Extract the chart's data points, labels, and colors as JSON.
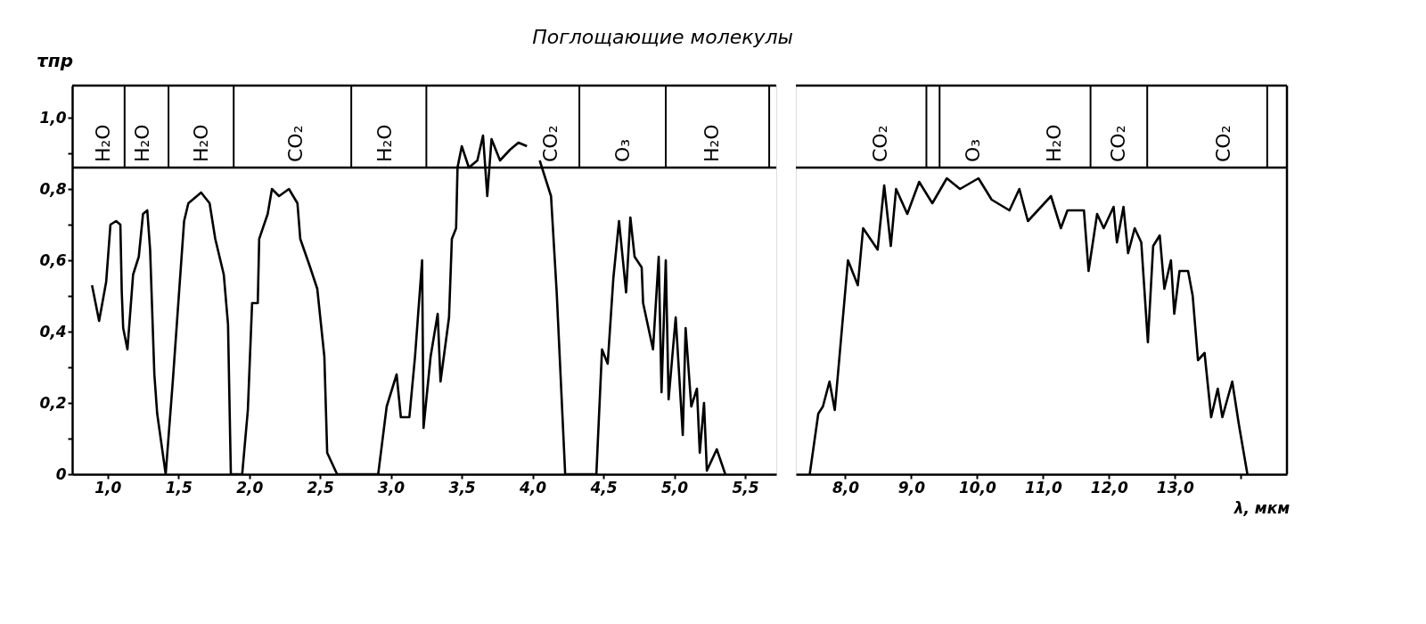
{
  "chart_data": [
    {
      "type": "line",
      "title": "Поглощающие молекулы",
      "ylabel": "τпр",
      "xlim": [
        0.75,
        5.72
      ],
      "ylim": [
        0,
        1.09
      ],
      "xticks": [
        {
          "value": 1.0,
          "label": "1,0"
        },
        {
          "value": 1.5,
          "label": "1,5"
        },
        {
          "value": 2.0,
          "label": "2,0"
        },
        {
          "value": 2.5,
          "label": "2,5"
        },
        {
          "value": 3.0,
          "label": "3,0"
        },
        {
          "value": 3.5,
          "label": "3,5"
        },
        {
          "value": 4.0,
          "label": "4,0"
        },
        {
          "value": 4.5,
          "label": "4,5"
        },
        {
          "value": 5.0,
          "label": "5,0"
        },
        {
          "value": 5.5,
          "label": "5,5"
        }
      ],
      "yticks": [
        0,
        {
          "value": 0.1,
          "label": null
        },
        {
          "value": 0.2,
          "label": "0,2"
        },
        {
          "value": 0.3,
          "label": null
        },
        {
          "value": 0.4,
          "label": "0,4"
        },
        {
          "value": 0.5,
          "label": null
        },
        {
          "value": 0.6,
          "label": "0,6"
        },
        {
          "value": 0.7,
          "label": null
        },
        {
          "value": 0.8,
          "label": "0,8"
        },
        {
          "value": 0.9,
          "label": null
        },
        {
          "value": 1.0,
          "label": "1,0"
        }
      ],
      "x": [
        0.89,
        0.94,
        0.99,
        1.02,
        1.06,
        1.09,
        1.1,
        1.11,
        1.14,
        1.18,
        1.22,
        1.25,
        1.28,
        1.3,
        1.33,
        1.35,
        1.41,
        1.46,
        1.54,
        1.57,
        1.66,
        1.72,
        1.76,
        1.82,
        1.85,
        1.87,
        1.95,
        1.99,
        2.02,
        2.06,
        2.07,
        2.13,
        2.16,
        2.21,
        2.28,
        2.34,
        2.36,
        2.43,
        2.48,
        2.53,
        2.55,
        2.62,
        2.91,
        2.97,
        3.04,
        3.07,
        3.13,
        3.17,
        3.22,
        3.23,
        3.28,
        3.33,
        3.35,
        3.41,
        3.43,
        3.46,
        3.47,
        3.5,
        3.55,
        3.61,
        3.65,
        3.68,
        3.71,
        3.77,
        3.84,
        3.9,
        3.96,
        4.0,
        4.05,
        4.13,
        4.17,
        4.23,
        4.45,
        4.49,
        4.53,
        4.57,
        4.61,
        4.66,
        4.69,
        4.72,
        4.77,
        4.78,
        4.85,
        4.89,
        4.91,
        4.94,
        4.96,
        5.01,
        5.06,
        5.08,
        5.12,
        5.16,
        5.18,
        5.21,
        5.23,
        5.3,
        5.36
      ],
      "series": [
        {
          "color": "#000000",
          "values": [
            0.53,
            0.43,
            0.54,
            0.7,
            0.71,
            0.7,
            0.51,
            0.41,
            0.35,
            0.56,
            0.61,
            0.73,
            0.74,
            0.63,
            0.28,
            0.17,
            0,
            0.26,
            0.71,
            0.76,
            0.79,
            0.76,
            0.66,
            0.56,
            0.42,
            0,
            0,
            0.18,
            0.48,
            0.48,
            0.66,
            0.73,
            0.8,
            0.78,
            0.8,
            0.76,
            0.66,
            0.58,
            0.52,
            0.33,
            0.06,
            0,
            0,
            0.19,
            0.28,
            0.16,
            0.16,
            0.33,
            0.6,
            0.13,
            0.33,
            0.45,
            0.26,
            0.44,
            0.66,
            0.69,
            0.86,
            0.92,
            0.86,
            0.88,
            0.95,
            0.78,
            0.94,
            0.88,
            0.91,
            0.93,
            0.92,
            null,
            0.88,
            0.78,
            0.51,
            0,
            0,
            0.35,
            0.31,
            0.55,
            0.71,
            0.51,
            0.72,
            0.61,
            0.58,
            0.48,
            0.35,
            0.61,
            0.23,
            0.6,
            0.21,
            0.44,
            0.11,
            0.41,
            0.19,
            0.24,
            0.06,
            0.2,
            0.01,
            0.07,
            0
          ]
        }
      ],
      "ref_lines": [
        {
          "axis": "y",
          "value": 0.86
        },
        {
          "axis": "x",
          "value": 1.12
        },
        {
          "axis": "x",
          "value": 1.43
        },
        {
          "axis": "x",
          "value": 1.89
        },
        {
          "axis": "x",
          "value": 2.72
        },
        {
          "axis": "x",
          "value": 3.25
        },
        {
          "axis": "x",
          "value": 4.33
        },
        {
          "axis": "x",
          "value": 4.94
        },
        {
          "axis": "x",
          "value": 5.67
        }
      ],
      "annotations": [
        {
          "text": "H₂O",
          "x": 0.97,
          "y": 0.86
        },
        {
          "text": "H₂O",
          "x": 1.25,
          "y": 0.86
        },
        {
          "text": "H₂O",
          "x": 1.66,
          "y": 0.86
        },
        {
          "text": "CO₂",
          "x": 2.33,
          "y": 0.86
        },
        {
          "text": "H₂O",
          "x": 2.96,
          "y": 0.86
        },
        {
          "text": "CO₂",
          "x": 4.13,
          "y": 0.86
        },
        {
          "text": "O₃",
          "x": 4.64,
          "y": 0.86
        },
        {
          "text": "H₂O",
          "x": 5.27,
          "y": 0.86
        }
      ]
    },
    {
      "type": "line",
      "xlabel": "λ, мкм",
      "tick_labels": "x",
      "xlim": [
        7.25,
        14.7
      ],
      "ylim": [
        0,
        1.09
      ],
      "xticks": [
        {
          "value": 8,
          "label": "8,0"
        },
        {
          "value": 9,
          "label": "9,0"
        },
        {
          "value": 10,
          "label": "10,0"
        },
        {
          "value": 11,
          "label": "11,0"
        },
        {
          "value": 12,
          "label": "12,0"
        },
        {
          "value": 13,
          "label": "13,0"
        },
        {
          "value": 14,
          "label": null
        }
      ],
      "x": [
        7.46,
        7.59,
        7.66,
        7.76,
        7.84,
        8.04,
        8.19,
        8.27,
        8.49,
        8.59,
        8.69,
        8.77,
        8.94,
        9.12,
        9.32,
        9.54,
        9.74,
        10.02,
        10.22,
        10.49,
        10.64,
        10.77,
        11.12,
        11.27,
        11.37,
        11.62,
        11.69,
        11.82,
        11.92,
        12.07,
        12.12,
        12.22,
        12.29,
        12.39,
        12.49,
        12.59,
        12.67,
        12.77,
        12.84,
        12.94,
        12.99,
        13.07,
        13.2,
        13.27,
        13.35,
        13.45,
        13.55,
        13.65,
        13.72,
        13.87,
        13.97,
        14.1
      ],
      "series": [
        {
          "color": "#000000",
          "values": [
            0,
            0.17,
            0.19,
            0.26,
            0.18,
            0.6,
            0.53,
            0.69,
            0.63,
            0.81,
            0.64,
            0.8,
            0.73,
            0.82,
            0.76,
            0.83,
            0.8,
            0.83,
            0.77,
            0.74,
            0.8,
            0.71,
            0.78,
            0.69,
            0.74,
            0.74,
            0.57,
            0.73,
            0.69,
            0.75,
            0.65,
            0.75,
            0.62,
            0.69,
            0.65,
            0.37,
            0.64,
            0.67,
            0.52,
            0.6,
            0.45,
            0.57,
            0.57,
            0.5,
            0.32,
            0.34,
            0.16,
            0.24,
            0.16,
            0.26,
            0.14,
            0
          ]
        }
      ],
      "ref_lines": [
        {
          "axis": "y",
          "value": 0.86
        },
        {
          "axis": "x",
          "value": 9.23
        },
        {
          "axis": "x",
          "value": 9.43
        },
        {
          "axis": "x",
          "value": 11.72
        },
        {
          "axis": "x",
          "value": 12.58
        },
        {
          "axis": "x",
          "value": 14.4
        }
      ],
      "annotations": [
        {
          "text": "CO₂",
          "x": 8.54,
          "y": 0.86
        },
        {
          "text": "O₃",
          "x": 9.94,
          "y": 0.86
        },
        {
          "text": "H₂O",
          "x": 11.17,
          "y": 0.86
        },
        {
          "text": "CO₂",
          "x": 12.14,
          "y": 0.86
        },
        {
          "text": "CO₂",
          "x": 13.74,
          "y": 0.86
        }
      ]
    }
  ]
}
